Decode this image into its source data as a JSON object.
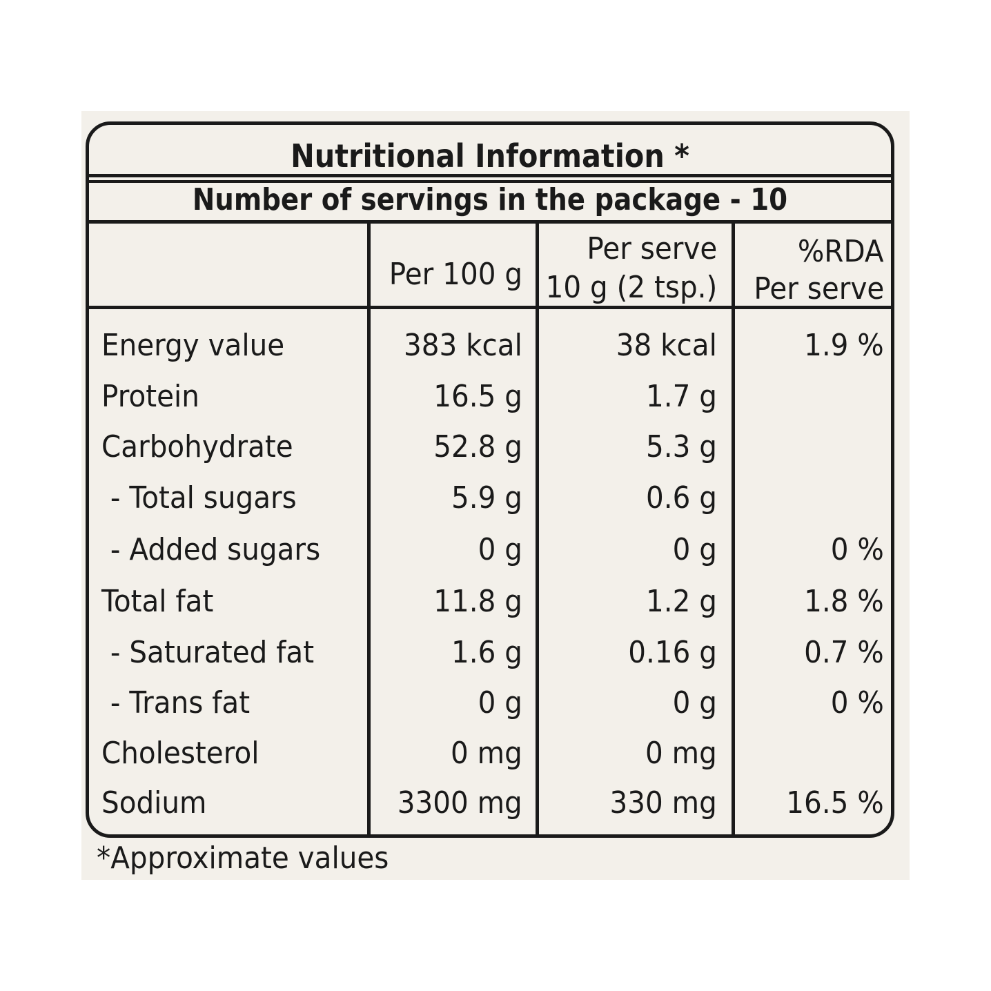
{
  "title": "Nutritional Information *",
  "servings": "Number of servings in the package - 10",
  "columns": [
    {
      "line1": "",
      "line2": "Per 100 g"
    },
    {
      "line1": "Per serve",
      "line2": "10 g (2 tsp.)"
    },
    {
      "line1": "%RDA",
      "line2": "Per serve"
    }
  ],
  "rows": [
    {
      "label": "Energy value",
      "per100": "383 kcal",
      "perserve": "38 kcal",
      "rda": "1.9 %"
    },
    {
      "label": "Protein",
      "per100": "16.5 g",
      "perserve": "1.7 g",
      "rda": ""
    },
    {
      "label": "Carbohydrate",
      "per100": "52.8 g",
      "perserve": "5.3 g",
      "rda": ""
    },
    {
      "label": " - Total sugars",
      "per100": "5.9 g",
      "perserve": "0.6 g",
      "rda": ""
    },
    {
      "label": " - Added sugars",
      "per100": "0 g",
      "perserve": "0 g",
      "rda": "0 %"
    },
    {
      "label": "Total fat",
      "per100": "11.8 g",
      "perserve": "1.2 g",
      "rda": "1.8 %"
    },
    {
      "label": " - Saturated fat",
      "per100": "1.6 g",
      "perserve": "0.16 g",
      "rda": "0.7 %"
    },
    {
      "label": " - Trans fat",
      "per100": "0 g",
      "perserve": "0 g",
      "rda": "0 %"
    },
    {
      "label": "Cholesterol",
      "per100": "0 mg",
      "perserve": "0 mg",
      "rda": ""
    },
    {
      "label": "Sodium",
      "per100": "3300 mg",
      "perserve": "330 mg",
      "rda": "16.5 %"
    }
  ],
  "footnote": "*Approximate values"
}
